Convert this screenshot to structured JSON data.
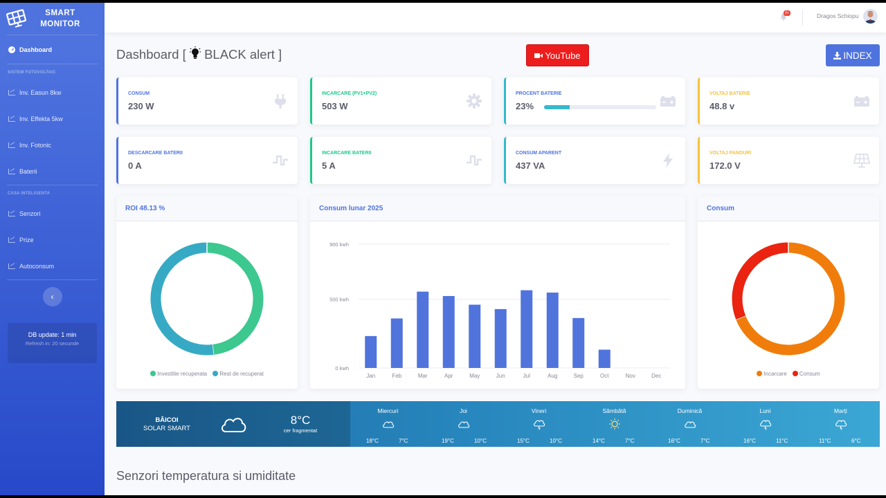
{
  "brand": {
    "line1": "SMART",
    "line2": "MONITOR"
  },
  "sidebar": {
    "active_item": "Dashboard",
    "heading1": "SISTEM FOTOVOLTAIC",
    "group1": [
      "Inv. Easun 8kw",
      "Inv. Effekta 5kw",
      "Inv. Fotonic",
      "Baterii"
    ],
    "heading2": "CASA INTELIGENTA",
    "group2": [
      "Senzori",
      "Prize",
      "Autoconsum"
    ],
    "toggle_glyph": "‹",
    "db_update": "DB update: 1 min",
    "refresh": "Refresh in: 20 secunde"
  },
  "topbar": {
    "badge": "3+",
    "user": "Dragos Schiopu"
  },
  "page": {
    "title_prefix": "Dashboard [",
    "title_suffix": "BLACK alert ]",
    "youtube": "YouTube",
    "index": "INDEX"
  },
  "cards": [
    {
      "label": "CONSUM",
      "value": "230 W",
      "icon": "plug-icon"
    },
    {
      "label": "INCARCARE (PV1+PV2)",
      "value": "503 W",
      "icon": "gear-icon"
    },
    {
      "label": "PROCENT BATERIE",
      "value": "23%",
      "icon": "battery-icon",
      "progress": 23
    },
    {
      "label": "VOLTAJ BATERIE",
      "value": "48.8 v",
      "icon": "battery-icon"
    },
    {
      "label": "DESCARCARE BATERII",
      "value": "0 A",
      "icon": "wave-icon"
    },
    {
      "label": "INCARCARE BATERII",
      "value": "5 A",
      "icon": "wave-icon"
    },
    {
      "label": "CONSUM APARENT",
      "value": "437 VA",
      "icon": "bolt-icon"
    },
    {
      "label": "VOLTAJ PANOURI",
      "value": "172.0 V",
      "icon": "solar-panel-icon"
    }
  ],
  "roi": {
    "title": "ROI 48.13 %",
    "legend": [
      "Investitie recuperata",
      "Rest de recuperat"
    ]
  },
  "consum_panel": {
    "title": "Consum",
    "legend": [
      "Incarcare",
      "Consum"
    ]
  },
  "bar_panel": {
    "title": "Consum lunar 2025"
  },
  "chart_data": [
    {
      "type": "pie",
      "title": "ROI 48.13 %",
      "labels": [
        "Investitie recuperata",
        "Rest de recuperat"
      ],
      "values": [
        48.13,
        51.87
      ],
      "colors": [
        "#3cc88f",
        "#36aac4"
      ]
    },
    {
      "type": "bar",
      "title": "Consum lunar 2025",
      "categories": [
        "Jan",
        "Feb",
        "Mar",
        "Apr",
        "May",
        "Jun",
        "Jul",
        "Aug",
        "Sep",
        "Oct",
        "Nov",
        "Dec"
      ],
      "values": [
        232,
        360,
        555,
        523,
        460,
        428,
        565,
        548,
        363,
        133,
        0,
        0
      ],
      "ylim": [
        0,
        900
      ],
      "yticks": [
        0,
        500,
        900
      ],
      "ytick_labels": [
        "0 kwh",
        "500 kwh",
        "900 kwh"
      ],
      "color": "#5074dc",
      "grid": true
    },
    {
      "type": "pie",
      "title": "Consum",
      "labels": [
        "Incarcare",
        "Consum"
      ],
      "values": [
        69,
        31
      ],
      "colors": [
        "#f07d0b",
        "#ea2410"
      ]
    }
  ],
  "weather": {
    "location": "BĂICOI",
    "subtitle": "SOLAR SMART",
    "temp": "8°C",
    "desc": "cer fragmentat",
    "days": [
      {
        "name": "Miercuri",
        "icon": "cloud-icon",
        "hi": "18°C",
        "lo": "7°C"
      },
      {
        "name": "Joi",
        "icon": "cloud-icon",
        "hi": "19°C",
        "lo": "10°C"
      },
      {
        "name": "Vineri",
        "icon": "rain-cloud-icon",
        "hi": "15°C",
        "lo": "10°C"
      },
      {
        "name": "Sâmbătă",
        "icon": "sun-icon",
        "hi": "14°C",
        "lo": "7°C"
      },
      {
        "name": "Duminică",
        "icon": "cloud-icon",
        "hi": "16°C",
        "lo": "7°C"
      },
      {
        "name": "Luni",
        "icon": "rain-cloud-icon",
        "hi": "16°C",
        "lo": "11°C"
      },
      {
        "name": "Marți",
        "icon": "rain-cloud-icon",
        "hi": "11°C",
        "lo": "6°C"
      }
    ]
  },
  "section": {
    "title": "Senzori temperatura si umiditate"
  }
}
